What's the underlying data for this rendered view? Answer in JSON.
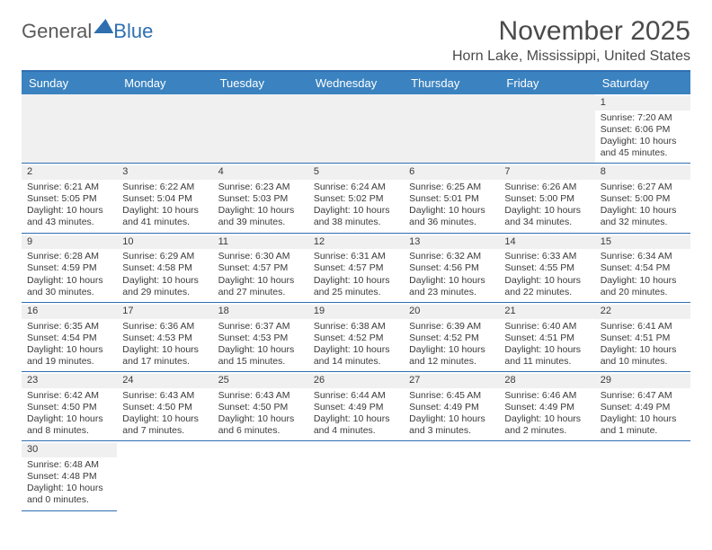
{
  "logo": {
    "text1": "General",
    "text2": "Blue"
  },
  "title": "November 2025",
  "location": "Horn Lake, Mississippi, United States",
  "day_headers": [
    "Sunday",
    "Monday",
    "Tuesday",
    "Wednesday",
    "Thursday",
    "Friday",
    "Saturday"
  ],
  "colors": {
    "header_bar": "#3b83c0",
    "rule": "#2f6fb0",
    "filler": "#f0f0f0",
    "text": "#3a3a3a"
  },
  "weeks": [
    [
      null,
      null,
      null,
      null,
      null,
      null,
      {
        "n": "1",
        "sr": "Sunrise: 7:20 AM",
        "ss": "Sunset: 6:06 PM",
        "d1": "Daylight: 10 hours",
        "d2": "and 45 minutes."
      }
    ],
    [
      {
        "n": "2",
        "sr": "Sunrise: 6:21 AM",
        "ss": "Sunset: 5:05 PM",
        "d1": "Daylight: 10 hours",
        "d2": "and 43 minutes."
      },
      {
        "n": "3",
        "sr": "Sunrise: 6:22 AM",
        "ss": "Sunset: 5:04 PM",
        "d1": "Daylight: 10 hours",
        "d2": "and 41 minutes."
      },
      {
        "n": "4",
        "sr": "Sunrise: 6:23 AM",
        "ss": "Sunset: 5:03 PM",
        "d1": "Daylight: 10 hours",
        "d2": "and 39 minutes."
      },
      {
        "n": "5",
        "sr": "Sunrise: 6:24 AM",
        "ss": "Sunset: 5:02 PM",
        "d1": "Daylight: 10 hours",
        "d2": "and 38 minutes."
      },
      {
        "n": "6",
        "sr": "Sunrise: 6:25 AM",
        "ss": "Sunset: 5:01 PM",
        "d1": "Daylight: 10 hours",
        "d2": "and 36 minutes."
      },
      {
        "n": "7",
        "sr": "Sunrise: 6:26 AM",
        "ss": "Sunset: 5:00 PM",
        "d1": "Daylight: 10 hours",
        "d2": "and 34 minutes."
      },
      {
        "n": "8",
        "sr": "Sunrise: 6:27 AM",
        "ss": "Sunset: 5:00 PM",
        "d1": "Daylight: 10 hours",
        "d2": "and 32 minutes."
      }
    ],
    [
      {
        "n": "9",
        "sr": "Sunrise: 6:28 AM",
        "ss": "Sunset: 4:59 PM",
        "d1": "Daylight: 10 hours",
        "d2": "and 30 minutes."
      },
      {
        "n": "10",
        "sr": "Sunrise: 6:29 AM",
        "ss": "Sunset: 4:58 PM",
        "d1": "Daylight: 10 hours",
        "d2": "and 29 minutes."
      },
      {
        "n": "11",
        "sr": "Sunrise: 6:30 AM",
        "ss": "Sunset: 4:57 PM",
        "d1": "Daylight: 10 hours",
        "d2": "and 27 minutes."
      },
      {
        "n": "12",
        "sr": "Sunrise: 6:31 AM",
        "ss": "Sunset: 4:57 PM",
        "d1": "Daylight: 10 hours",
        "d2": "and 25 minutes."
      },
      {
        "n": "13",
        "sr": "Sunrise: 6:32 AM",
        "ss": "Sunset: 4:56 PM",
        "d1": "Daylight: 10 hours",
        "d2": "and 23 minutes."
      },
      {
        "n": "14",
        "sr": "Sunrise: 6:33 AM",
        "ss": "Sunset: 4:55 PM",
        "d1": "Daylight: 10 hours",
        "d2": "and 22 minutes."
      },
      {
        "n": "15",
        "sr": "Sunrise: 6:34 AM",
        "ss": "Sunset: 4:54 PM",
        "d1": "Daylight: 10 hours",
        "d2": "and 20 minutes."
      }
    ],
    [
      {
        "n": "16",
        "sr": "Sunrise: 6:35 AM",
        "ss": "Sunset: 4:54 PM",
        "d1": "Daylight: 10 hours",
        "d2": "and 19 minutes."
      },
      {
        "n": "17",
        "sr": "Sunrise: 6:36 AM",
        "ss": "Sunset: 4:53 PM",
        "d1": "Daylight: 10 hours",
        "d2": "and 17 minutes."
      },
      {
        "n": "18",
        "sr": "Sunrise: 6:37 AM",
        "ss": "Sunset: 4:53 PM",
        "d1": "Daylight: 10 hours",
        "d2": "and 15 minutes."
      },
      {
        "n": "19",
        "sr": "Sunrise: 6:38 AM",
        "ss": "Sunset: 4:52 PM",
        "d1": "Daylight: 10 hours",
        "d2": "and 14 minutes."
      },
      {
        "n": "20",
        "sr": "Sunrise: 6:39 AM",
        "ss": "Sunset: 4:52 PM",
        "d1": "Daylight: 10 hours",
        "d2": "and 12 minutes."
      },
      {
        "n": "21",
        "sr": "Sunrise: 6:40 AM",
        "ss": "Sunset: 4:51 PM",
        "d1": "Daylight: 10 hours",
        "d2": "and 11 minutes."
      },
      {
        "n": "22",
        "sr": "Sunrise: 6:41 AM",
        "ss": "Sunset: 4:51 PM",
        "d1": "Daylight: 10 hours",
        "d2": "and 10 minutes."
      }
    ],
    [
      {
        "n": "23",
        "sr": "Sunrise: 6:42 AM",
        "ss": "Sunset: 4:50 PM",
        "d1": "Daylight: 10 hours",
        "d2": "and 8 minutes."
      },
      {
        "n": "24",
        "sr": "Sunrise: 6:43 AM",
        "ss": "Sunset: 4:50 PM",
        "d1": "Daylight: 10 hours",
        "d2": "and 7 minutes."
      },
      {
        "n": "25",
        "sr": "Sunrise: 6:43 AM",
        "ss": "Sunset: 4:50 PM",
        "d1": "Daylight: 10 hours",
        "d2": "and 6 minutes."
      },
      {
        "n": "26",
        "sr": "Sunrise: 6:44 AM",
        "ss": "Sunset: 4:49 PM",
        "d1": "Daylight: 10 hours",
        "d2": "and 4 minutes."
      },
      {
        "n": "27",
        "sr": "Sunrise: 6:45 AM",
        "ss": "Sunset: 4:49 PM",
        "d1": "Daylight: 10 hours",
        "d2": "and 3 minutes."
      },
      {
        "n": "28",
        "sr": "Sunrise: 6:46 AM",
        "ss": "Sunset: 4:49 PM",
        "d1": "Daylight: 10 hours",
        "d2": "and 2 minutes."
      },
      {
        "n": "29",
        "sr": "Sunrise: 6:47 AM",
        "ss": "Sunset: 4:49 PM",
        "d1": "Daylight: 10 hours",
        "d2": "and 1 minute."
      }
    ],
    [
      {
        "n": "30",
        "sr": "Sunrise: 6:48 AM",
        "ss": "Sunset: 4:48 PM",
        "d1": "Daylight: 10 hours",
        "d2": "and 0 minutes."
      },
      null,
      null,
      null,
      null,
      null,
      null
    ]
  ]
}
